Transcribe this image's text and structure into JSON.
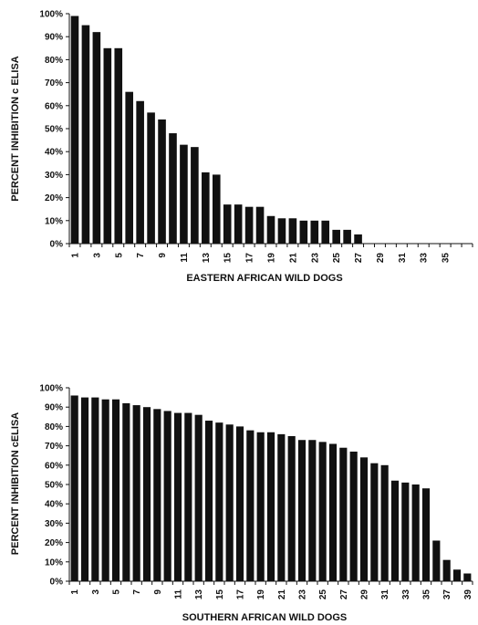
{
  "chart_data": [
    {
      "type": "bar",
      "title": "",
      "xlabel": "EASTERN AFRICAN WILD DOGS",
      "ylabel": "PERCENT INHIBITION c ELISA",
      "ylim": [
        0,
        100
      ],
      "y_ticks": [
        "0%",
        "10%",
        "20%",
        "30%",
        "40%",
        "50%",
        "60%",
        "70%",
        "80%",
        "90%",
        "100%"
      ],
      "category_count": 37,
      "category_labels": [
        "1",
        "3",
        "5",
        "7",
        "9",
        "11",
        "13",
        "15",
        "17",
        "19",
        "21",
        "23",
        "25",
        "27",
        "29",
        "31",
        "33",
        "35"
      ],
      "values": [
        99,
        95,
        92,
        85,
        85,
        66,
        62,
        57,
        54,
        48,
        43,
        42,
        31,
        30,
        17,
        17,
        16,
        16,
        12,
        11,
        11,
        10,
        10,
        10,
        6,
        6,
        4,
        0,
        0,
        0,
        0,
        0,
        0,
        0,
        0,
        0,
        0
      ],
      "grid": false,
      "legend": "none",
      "bar_color": "#111111"
    },
    {
      "type": "bar",
      "title": "",
      "xlabel": "SOUTHERN AFRICAN WILD DOGS",
      "ylabel": "PERCENT INHIBITION cELISA",
      "ylim": [
        0,
        100
      ],
      "y_ticks": [
        "0%",
        "10%",
        "20%",
        "30%",
        "40%",
        "50%",
        "60%",
        "70%",
        "80%",
        "90%",
        "100%"
      ],
      "category_count": 39,
      "category_labels": [
        "1",
        "3",
        "5",
        "7",
        "9",
        "11",
        "13",
        "15",
        "17",
        "19",
        "21",
        "23",
        "25",
        "27",
        "29",
        "31",
        "33",
        "35",
        "37",
        "39"
      ],
      "values": [
        96,
        95,
        95,
        94,
        94,
        92,
        91,
        90,
        89,
        88,
        87,
        87,
        86,
        83,
        82,
        81,
        80,
        78,
        77,
        77,
        76,
        75,
        73,
        73,
        72,
        71,
        69,
        67,
        64,
        61,
        60,
        52,
        51,
        50,
        48,
        21,
        11,
        6,
        4
      ],
      "grid": false,
      "legend": "none",
      "bar_color": "#111111"
    }
  ]
}
